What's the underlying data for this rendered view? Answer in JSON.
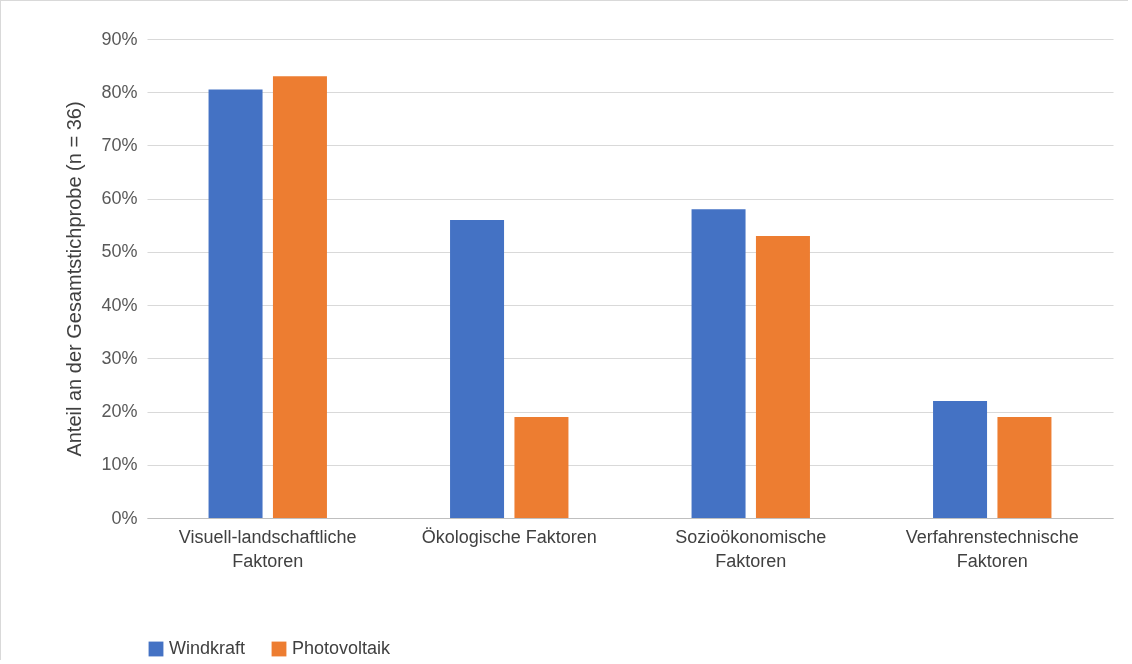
{
  "chart_data": {
    "type": "bar",
    "ylabel": "Anteil an der Gesamtstichprobe (n = 36)",
    "categories": [
      "Visuell-landschaftliche Faktoren",
      "Ökologische Faktoren",
      "Sozioökonomische Faktoren",
      "Verfahrenstechnische Faktoren"
    ],
    "series": [
      {
        "name": "Windkraft",
        "color": "#4472c4",
        "values": [
          80.5,
          56,
          58,
          22
        ]
      },
      {
        "name": "Photovoltaik",
        "color": "#ed7d31",
        "values": [
          83,
          19,
          53,
          19
        ]
      }
    ],
    "ylim": [
      0,
      90
    ],
    "yticks": [
      {
        "value": 0,
        "label": "0%"
      },
      {
        "value": 10,
        "label": "10%"
      },
      {
        "value": 20,
        "label": "20%"
      },
      {
        "value": 30,
        "label": "30%"
      },
      {
        "value": 40,
        "label": "40%"
      },
      {
        "value": 50,
        "label": "50%"
      },
      {
        "value": 60,
        "label": "60%"
      },
      {
        "value": 70,
        "label": "70%"
      },
      {
        "value": 80,
        "label": "80%"
      },
      {
        "value": 90,
        "label": "90%"
      }
    ],
    "grid": "y",
    "legend": "bottom"
  }
}
